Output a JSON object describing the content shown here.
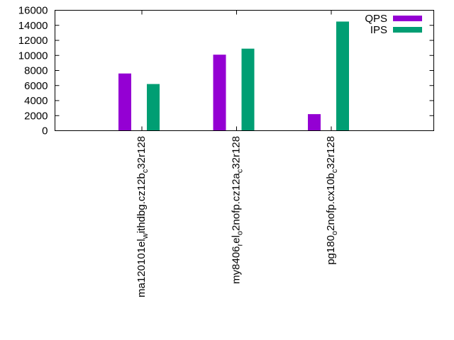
{
  "chart_data": {
    "type": "bar",
    "title": "",
    "xlabel": "",
    "ylabel": "",
    "ylim": [
      0,
      16000
    ],
    "yticks": [
      0,
      2000,
      4000,
      6000,
      8000,
      10000,
      12000,
      14000,
      16000
    ],
    "grid": false,
    "legend_position": "top-right",
    "categories": [
      {
        "base": "ma120101",
        "parts": [
          [
            "-",
            "el"
          ],
          [
            "sub",
            "w"
          ],
          [
            "-",
            "ithdbg.cz12b"
          ],
          [
            "sub",
            "c"
          ],
          [
            "-",
            "32r128"
          ]
        ],
        "text": "ma120101_el_withdbg.cz12b_c32r128"
      },
      {
        "base": "my8406",
        "parts": [
          [
            "sub",
            "r"
          ],
          [
            "-",
            "el"
          ],
          [
            "sub",
            "o"
          ],
          [
            "-",
            "2nofp.cz12a"
          ],
          [
            "sub",
            "c"
          ],
          [
            "-",
            "32r128"
          ]
        ],
        "text": "my8406_rel_o2nofp.cz12a_c32r128"
      },
      {
        "base": "pg180",
        "parts": [
          [
            "sub",
            "o"
          ],
          [
            "-",
            "2nofp.cx10b"
          ],
          [
            "sub",
            "c"
          ],
          [
            "-",
            "32r128"
          ]
        ],
        "text": "pg180_o2nofp.cx10b_c32r128"
      }
    ],
    "series": [
      {
        "name": "QPS",
        "color": "#9400d3",
        "values": [
          7600,
          10100,
          2200
        ]
      },
      {
        "name": "IPS",
        "color": "#009e73",
        "values": [
          6200,
          10900,
          14500
        ]
      }
    ]
  }
}
